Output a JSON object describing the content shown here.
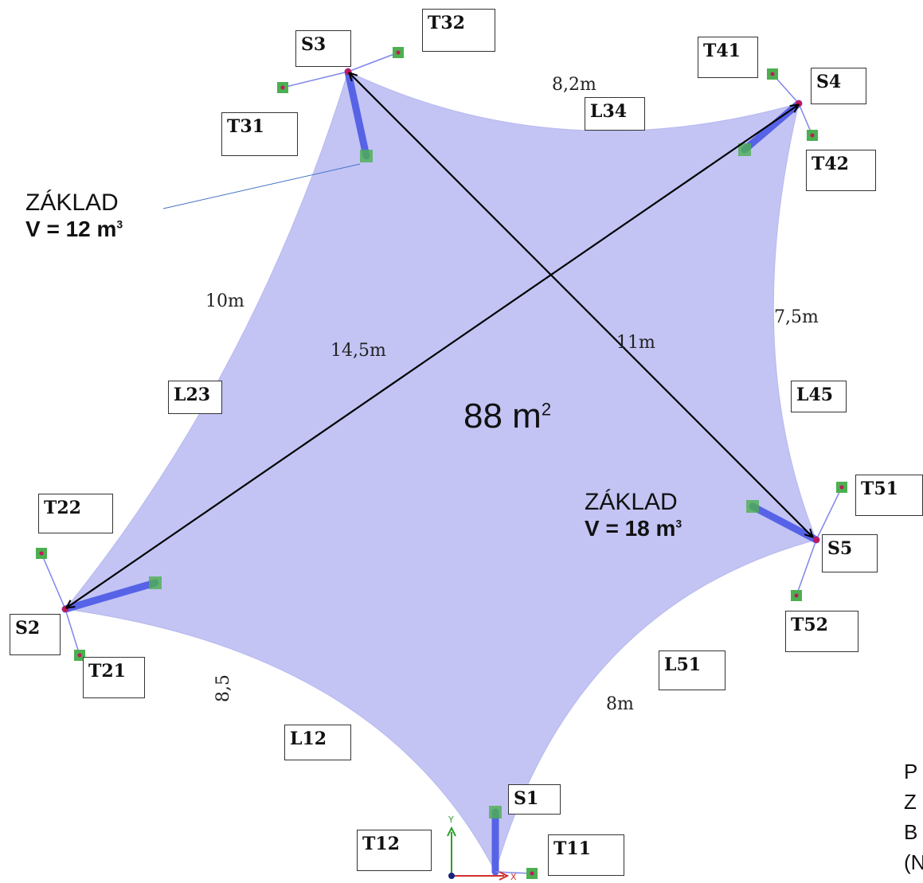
{
  "surface": {
    "area_value": "88 m",
    "area_sup": "2",
    "fill": "#c3c4f4"
  },
  "bases": [
    {
      "title": "ZÁKLAD",
      "volume": "V = 12 m",
      "volume_sup": "3"
    },
    {
      "title": "ZÁKLAD",
      "volume": "V = 18 m",
      "volume_sup": "3"
    }
  ],
  "supports": [
    "S1",
    "S2",
    "S3",
    "S4",
    "S5"
  ],
  "tiebacks": [
    "T11",
    "T12",
    "T21",
    "T22",
    "T31",
    "T32",
    "T41",
    "T42",
    "T51",
    "T52"
  ],
  "edges": [
    "L12",
    "L23",
    "L34",
    "L45",
    "L51"
  ],
  "dimensions": {
    "l12": "8,5",
    "l23": "10m",
    "l34": "8,2m",
    "l45": "7,5m",
    "l51": "8m",
    "diag_s2_s4": "14,5m",
    "diag_s3_s5": "11m"
  },
  "axes": {
    "y": "Y",
    "x": "X"
  },
  "side_note": [
    "P",
    "Z",
    "B",
    "(N"
  ],
  "colors": {
    "mast": "#5763e6",
    "anchor": "#4caf50",
    "anchor_dot": "#c2185b",
    "arrow": "#000000",
    "axis_x": "#d32f2f",
    "axis_y": "#2e9e2e"
  }
}
